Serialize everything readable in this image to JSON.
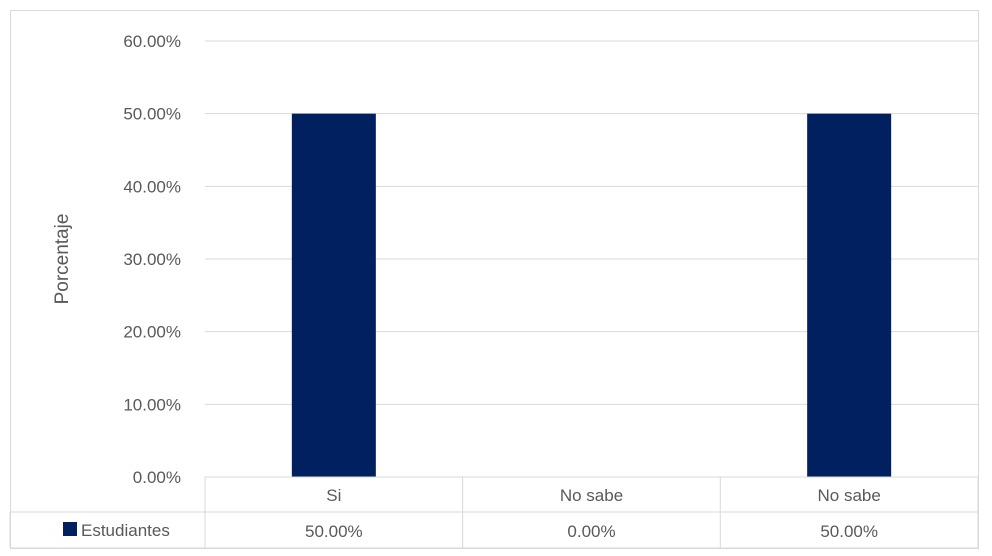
{
  "chart_data": {
    "type": "bar",
    "title": "",
    "xlabel": "",
    "ylabel": "Porcentaje",
    "categories": [
      "Si",
      "No sabe",
      "No sabe"
    ],
    "series": [
      {
        "name": "Estudiantes",
        "values": [
          50,
          0,
          50
        ],
        "labels": [
          "50.00%",
          "0.00%",
          "50.00%"
        ]
      }
    ],
    "ylim": [
      0,
      60
    ],
    "y_ticks": [
      "0.00%",
      "10.00%",
      "20.00%",
      "30.00%",
      "40.00%",
      "50.00%",
      "60.00%"
    ],
    "grid": true,
    "legend_placement": "data-table",
    "bar_color": "#002060",
    "data_table": true
  }
}
